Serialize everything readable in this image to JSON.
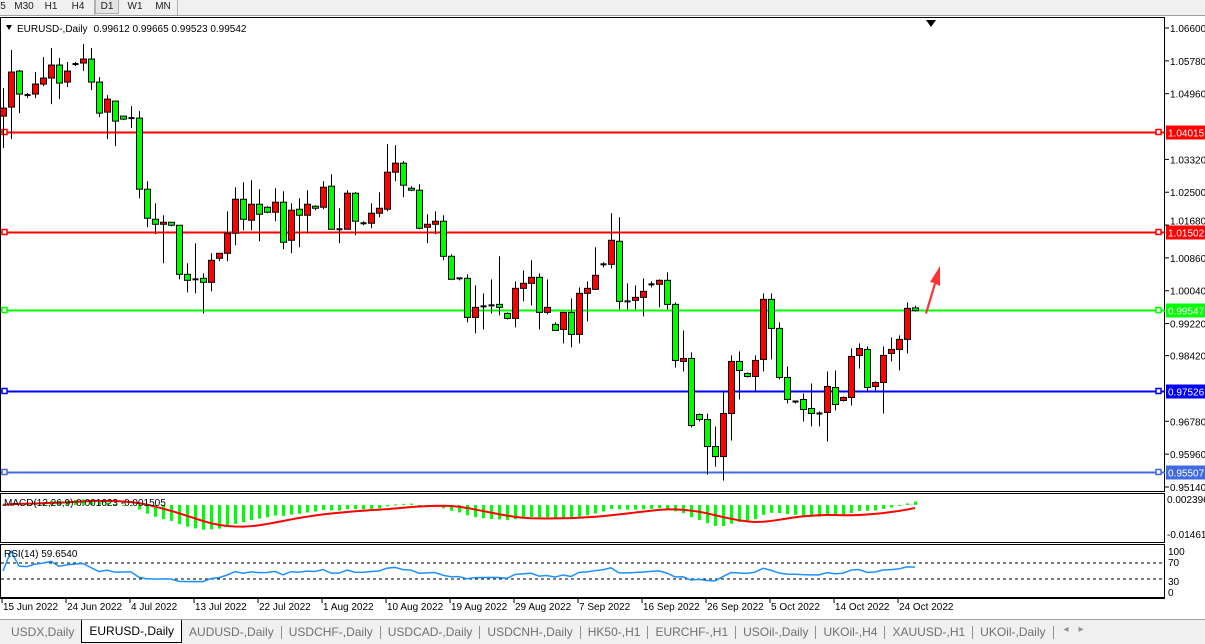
{
  "timeframes": {
    "items": [
      "5",
      "M30",
      "H1",
      "H4",
      "D1",
      "W1",
      "MN"
    ],
    "active": "D1"
  },
  "header": {
    "symbol": "EURUSD-,Daily",
    "ohlc": "0.99612 0.99665 0.99523 0.99542"
  },
  "colors": {
    "up_candle": "#ff0000",
    "down_candle": "#00ff00",
    "wick": "#000000",
    "macd_hist": "#00ff00",
    "macd_signal": "#ff0000",
    "rsi_line": "#1e90ff",
    "arrow": "#ff3333"
  },
  "price_axis": {
    "ticks": [
      "1.06600",
      "1.05780",
      "1.04960",
      "1.03320",
      "1.02500",
      "1.01680",
      "1.00860",
      "1.00040",
      "0.99220",
      "0.98420",
      "0.96780",
      "0.95960",
      "0.95140"
    ]
  },
  "levels": [
    {
      "price": "1.04015",
      "color": "#ff0000"
    },
    {
      "price": "1.01502",
      "color": "#ff0000"
    },
    {
      "price": "0.99547",
      "color": "#00ff00"
    },
    {
      "price": "0.97526",
      "color": "#0000ff"
    },
    {
      "price": "0.95507",
      "color": "#4169e1"
    }
  ],
  "chart_data": {
    "type": "candlestick",
    "symbol": "EURUSD-",
    "timeframe": "Daily",
    "ylim": [
      0.9514,
      1.066
    ],
    "ohlc": [
      [
        1.044,
        1.051,
        1.036,
        1.046
      ],
      [
        1.04625,
        1.0605,
        1.03825,
        1.055
      ],
      [
        1.05525,
        1.0555,
        1.04475,
        1.0495
      ],
      [
        1.04925,
        1.04975,
        1.0485,
        1.04925
      ],
      [
        1.0495,
        1.055,
        1.0485,
        1.052
      ],
      [
        1.052,
        1.05875,
        1.0515,
        1.0535
      ],
      [
        1.0535,
        1.061,
        1.047,
        1.05675
      ],
      [
        1.05675,
        1.0585,
        1.04825,
        1.05225
      ],
      [
        1.0525,
        1.0575,
        1.05125,
        1.05525
      ],
      [
        1.057,
        1.0575,
        1.0565,
        1.057
      ],
      [
        1.05725,
        1.062,
        1.05525,
        1.05825
      ],
      [
        1.05825,
        1.061,
        1.0505,
        1.0525
      ],
      [
        1.0525,
        1.05375,
        1.04375,
        1.04475
      ],
      [
        1.045,
        1.04925,
        1.03825,
        1.04825
      ],
      [
        1.04775,
        1.04775,
        1.0365,
        1.04275
      ],
      [
        1.044,
        1.044,
        1.043,
        1.04325
      ],
      [
        1.0435,
        1.0465,
        1.041,
        1.0435
      ],
      [
        1.0435,
        1.04525,
        1.0235,
        1.02575
      ],
      [
        1.02575,
        1.02775,
        1.01625,
        1.0185
      ],
      [
        1.01825,
        1.02225,
        1.0145,
        1.017
      ],
      [
        1.017,
        1.01925,
        1.00725,
        1.0175
      ],
      [
        1.0175,
        1.0175,
        1.0165,
        1.01675
      ],
      [
        1.01675,
        1.01675,
        1.00325,
        1.0045
      ],
      [
        1.0045,
        1.00725,
        1.0,
        1.003
      ],
      [
        1.00325,
        1.01225,
        0.99975,
        1.00325
      ],
      [
        1.0035,
        1.00475,
        0.99475,
        1.0025
      ],
      [
        1.0025,
        1.00975,
        1.00025,
        1.008
      ],
      [
        1.0085,
        1.00975,
        1.00775,
        1.00975
      ],
      [
        1.00975,
        1.02025,
        1.00775,
        1.01475
      ],
      [
        1.01475,
        1.02625,
        1.01175,
        1.02325
      ],
      [
        1.02325,
        1.0275,
        1.0155,
        1.01825
      ],
      [
        1.018,
        1.028,
        1.0155,
        1.022
      ],
      [
        1.022,
        1.02575,
        1.01275,
        1.0195
      ],
      [
        1.02125,
        1.0215,
        1.01975,
        1.02
      ],
      [
        1.02,
        1.026,
        1.01775,
        1.0225
      ],
      [
        1.0225,
        1.02525,
        1.01075,
        1.0125
      ],
      [
        1.013,
        1.02225,
        1.00975,
        1.0205
      ],
      [
        1.02075,
        1.0235,
        1.01125,
        1.01925
      ],
      [
        1.01925,
        1.0255,
        1.01475,
        1.022
      ],
      [
        1.0215,
        1.02175,
        1.0205,
        1.021
      ],
      [
        1.02125,
        1.02775,
        1.02075,
        1.02625
      ],
      [
        1.0265,
        1.0295,
        1.01575,
        1.01575
      ],
      [
        1.01575,
        1.021,
        1.01225,
        1.01575
      ],
      [
        1.01575,
        1.0255,
        1.01575,
        1.02475
      ],
      [
        1.02475,
        1.025,
        1.01425,
        1.01775
      ],
      [
        1.01725,
        1.01775,
        1.01675,
        1.01725
      ],
      [
        1.01725,
        1.02225,
        1.016,
        1.01975
      ],
      [
        1.01975,
        1.025,
        1.01875,
        1.021
      ],
      [
        1.02075,
        1.037,
        1.02025,
        1.03
      ],
      [
        1.03,
        1.03675,
        1.02775,
        1.03225
      ],
      [
        1.03225,
        1.03275,
        1.02375,
        1.02675
      ],
      [
        1.026,
        1.0265,
        1.02525,
        1.0255
      ],
      [
        1.0255,
        1.027,
        1.01575,
        1.016
      ],
      [
        1.01625,
        1.0195,
        1.01225,
        1.017
      ],
      [
        1.017,
        1.02025,
        1.0145,
        1.01775
      ],
      [
        1.01775,
        1.01925,
        1.008,
        1.009
      ],
      [
        1.009,
        1.0095,
        1.00325,
        1.00325
      ],
      [
        1.0035,
        1.0035,
        1.003,
        1.0035
      ],
      [
        1.0035,
        1.0045,
        0.9925,
        0.99375
      ],
      [
        0.99375,
        1.00175,
        0.98975,
        0.99625
      ],
      [
        0.9965,
        0.99975,
        0.99075,
        0.9965
      ],
      [
        0.99675,
        1.00325,
        0.99475,
        0.99675
      ],
      [
        0.997,
        1.009,
        0.99425,
        0.99625
      ],
      [
        0.99475,
        0.995,
        0.99325,
        0.9935
      ],
      [
        0.9935,
        1.00275,
        0.99125,
        1.001
      ],
      [
        1.001,
        1.0055,
        0.99775,
        1.00225
      ],
      [
        1.00225,
        1.008,
        0.99675,
        1.00375
      ],
      [
        1.00375,
        1.00475,
        0.99075,
        0.995
      ],
      [
        0.995,
        1.00325,
        0.9945,
        0.99625
      ],
      [
        0.992,
        0.9925,
        0.9905,
        0.9905
      ],
      [
        0.99075,
        0.995,
        0.98725,
        0.995
      ],
      [
        0.995,
        0.9985,
        0.98625,
        0.9895
      ],
      [
        0.9895,
        1.00125,
        0.98725,
        0.99975
      ],
      [
        0.99975,
        1.00275,
        0.99275,
        1.001
      ],
      [
        1.00075,
        1.01125,
        1.00075,
        1.00425
      ],
      [
        1.007,
        1.0075,
        1.00625,
        1.007
      ],
      [
        1.007,
        1.01975,
        1.006,
        1.013
      ],
      [
        1.01275,
        1.01875,
        0.99575,
        0.99775
      ],
      [
        0.99775,
        1.00225,
        0.99575,
        0.99775
      ],
      [
        0.998,
        1.00175,
        0.99575,
        0.99875
      ],
      [
        0.99875,
        1.0035,
        0.994,
        1.00025
      ],
      [
        1.002,
        1.00275,
        1.00125,
        1.002
      ],
      [
        1.002,
        1.00325,
        0.99625,
        1.003
      ],
      [
        1.003,
        1.005,
        0.99575,
        0.997
      ],
      [
        0.997,
        0.9975,
        0.98125,
        0.983
      ],
      [
        0.98275,
        0.9905,
        0.98025,
        0.9835
      ],
      [
        0.9835,
        0.985,
        0.96625,
        0.96675
      ],
      [
        0.9695,
        0.96975,
        0.96775,
        0.96825
      ],
      [
        0.96825,
        0.96975,
        0.9545,
        0.9615
      ],
      [
        0.9615,
        0.9665,
        0.9565,
        0.959
      ],
      [
        0.959,
        0.975,
        0.953,
        0.96975
      ],
      [
        0.96975,
        0.98425,
        0.963,
        0.98275
      ],
      [
        0.98275,
        0.98525,
        0.97325,
        0.9805
      ],
      [
        0.97975,
        0.98,
        0.97875,
        0.979
      ],
      [
        0.979,
        0.98425,
        0.97525,
        0.983
      ],
      [
        0.98325,
        0.99975,
        0.98025,
        0.99825
      ],
      [
        0.99825,
        0.99975,
        0.98325,
        0.991
      ],
      [
        0.991,
        0.9925,
        0.97825,
        0.97875
      ],
      [
        0.97875,
        0.9815,
        0.97225,
        0.97325
      ],
      [
        0.97275,
        0.973,
        0.97225,
        0.97275
      ],
      [
        0.97325,
        0.97475,
        0.96775,
        0.97075
      ],
      [
        0.971,
        0.97725,
        0.9665,
        0.96975
      ],
      [
        0.96975,
        0.97025,
        0.9665,
        0.96975
      ],
      [
        0.97,
        0.98025,
        0.96275,
        0.9765
      ],
      [
        0.97625,
        0.9805,
        0.9705,
        0.972
      ],
      [
        0.973,
        0.974,
        0.97275,
        0.97375
      ],
      [
        0.97375,
        0.986,
        0.97175,
        0.984
      ],
      [
        0.98425,
        0.98725,
        0.981,
        0.986
      ],
      [
        0.98575,
        0.9865,
        0.97525,
        0.97625
      ],
      [
        0.9765,
        0.97775,
        0.9755,
        0.9775
      ],
      [
        0.9775,
        0.9865,
        0.96975,
        0.98425
      ],
      [
        0.98475,
        0.98875,
        0.98275,
        0.98575
      ],
      [
        0.98575,
        0.98925,
        0.9805,
        0.98825
      ],
      [
        0.98825,
        0.9975,
        0.98475,
        0.996
      ],
      [
        0.99612,
        0.99665,
        0.99523,
        0.99542
      ]
    ],
    "date_labels": [
      "15 Jun 2022",
      "24 Jun 2022",
      "4 Jul 2022",
      "13 Jul 2022",
      "22 Jul 2022",
      "1 Aug 2022",
      "10 Aug 2022",
      "19 Aug 2022",
      "29 Aug 2022",
      "7 Sep 2022",
      "16 Sep 2022",
      "26 Sep 2022",
      "5 Oct 2022",
      "14 Oct 2022",
      "24 Oct 2022"
    ],
    "macd": {
      "label": "MACD(12,26,9) 0.001623 -0.001505",
      "axis_top": "0.002396",
      "axis_bottom": "-0.014615",
      "ylim": [
        -0.014615,
        0.002396
      ]
    },
    "rsi": {
      "label": "RSI(14) 59.6540",
      "levels": [
        "100",
        "70",
        "30",
        "0"
      ],
      "ylim": [
        0,
        100
      ]
    }
  },
  "tabs": {
    "items": [
      "USDX,Daily",
      "EURUSD-,Daily",
      "AUDUSD-,Daily",
      "USDCHF-,Daily",
      "USDCAD-,Daily",
      "USDCNH-,Daily",
      "HK50-,H1",
      "EURCHF-,H1",
      "USOil-,Daily",
      "UKOil-,H4",
      "XAUUSD-,H1",
      "UKOil-,Daily"
    ],
    "active": "EURUSD-,Daily"
  }
}
